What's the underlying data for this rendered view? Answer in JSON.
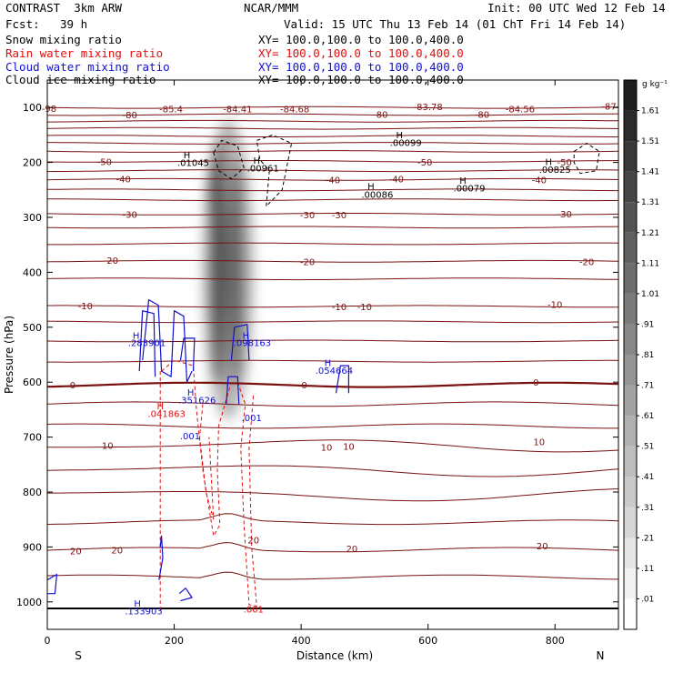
{
  "header": {
    "model": "CONTRAST  3km ARW",
    "center": "NCAR/MMM",
    "init": "Init: 00 UTC Wed 12 Feb 14",
    "fcst_label": "Fcst:",
    "fcst_value": "39 h",
    "valid": "Valid: 15 UTC Thu 13 Feb 14 (01 ChT Fri 14 Feb 14)"
  },
  "legend": [
    {
      "label": "Snow mixing ratio",
      "xy": "XY= 100.0,100.0 to 100.0,400.0",
      "color": "#000000"
    },
    {
      "label": "Rain water mixing ratio",
      "xy": "XY= 100.0,100.0 to 100.0,400.0",
      "color": "#e01010"
    },
    {
      "label": "Cloud water mixing ratio",
      "xy": "XY= 100.0,100.0 to 100.0,400.0",
      "color": "#1010d0"
    },
    {
      "label": "Cloud ice mixing ratio",
      "xy": "XY= 100.0,100.0 to 100.0,400.0",
      "color": "#000000"
    }
  ],
  "chart_data": {
    "type": "contour cross-section",
    "xlabel": "Distance (km)",
    "ylabel": "Pressure (hPa)",
    "xlim": [
      0,
      900
    ],
    "ylim": [
      1050,
      50
    ],
    "xticks": [
      0,
      200,
      400,
      600,
      800
    ],
    "yticks": [
      100,
      200,
      300,
      400,
      500,
      600,
      700,
      800,
      900,
      1000
    ],
    "x_end_labels": {
      "left": "S",
      "right": "N"
    },
    "colors": {
      "temperature": "#7a1010",
      "rain": "#e01010",
      "cloud_water": "#1010d0",
      "ice": "#000000"
    },
    "colorbar": {
      "unit": "g kg⁻¹",
      "levels": [
        ".01",
        ".11",
        ".21",
        ".31",
        ".41",
        ".51",
        ".61",
        ".71",
        ".81",
        ".91",
        "1.01",
        "1.11",
        "1.21",
        "1.31",
        "1.41",
        "1.51",
        "1.61"
      ]
    },
    "temperature_labels": [
      {
        "text": "-98",
        "x": -15,
        "p": 101
      },
      {
        "text": "-85.4",
        "x": 195,
        "p": 102
      },
      {
        "text": "-84.41",
        "x": 300,
        "p": 102
      },
      {
        "text": "-84.68",
        "x": 390,
        "p": 102
      },
      {
        "text": "-83.78",
        "x": 600,
        "p": 98
      },
      {
        "text": "-84.56",
        "x": 745,
        "p": 102
      },
      {
        "text": "-87",
        "x": 885,
        "p": 97
      },
      {
        "text": "-80",
        "x": 130,
        "p": 113
      },
      {
        "text": "-80",
        "x": 525,
        "p": 112
      },
      {
        "text": "-80",
        "x": 685,
        "p": 112
      },
      {
        "text": "-50",
        "x": 90,
        "p": 198
      },
      {
        "text": "-50",
        "x": 595,
        "p": 199
      },
      {
        "text": "-50",
        "x": 815,
        "p": 199
      },
      {
        "text": "-40",
        "x": 120,
        "p": 230
      },
      {
        "text": "-40",
        "x": 450,
        "p": 231
      },
      {
        "text": "-40",
        "x": 775,
        "p": 231
      },
      {
        "text": "-40",
        "x": 550,
        "p": 230
      },
      {
        "text": "-30",
        "x": 130,
        "p": 294
      },
      {
        "text": "-30",
        "x": 410,
        "p": 295
      },
      {
        "text": "-30",
        "x": 460,
        "p": 295
      },
      {
        "text": "-30",
        "x": 815,
        "p": 293
      },
      {
        "text": "-20",
        "x": 100,
        "p": 378
      },
      {
        "text": "-20",
        "x": 410,
        "p": 380
      },
      {
        "text": "-20",
        "x": 850,
        "p": 380
      },
      {
        "text": "-10",
        "x": 60,
        "p": 461
      },
      {
        "text": "-10",
        "x": 460,
        "p": 462
      },
      {
        "text": "-10",
        "x": 500,
        "p": 462
      },
      {
        "text": "-10",
        "x": 800,
        "p": 458
      },
      {
        "text": "0",
        "x": 40,
        "p": 605
      },
      {
        "text": "0",
        "x": 405,
        "p": 605
      },
      {
        "text": "0",
        "x": 770,
        "p": 600
      },
      {
        "text": "10",
        "x": 95,
        "p": 715
      },
      {
        "text": "10",
        "x": 440,
        "p": 718
      },
      {
        "text": "10",
        "x": 475,
        "p": 716
      },
      {
        "text": "10",
        "x": 775,
        "p": 708
      },
      {
        "text": "20",
        "x": 45,
        "p": 907
      },
      {
        "text": "20",
        "x": 110,
        "p": 905
      },
      {
        "text": "20",
        "x": 325,
        "p": 887
      },
      {
        "text": "20",
        "x": 480,
        "p": 903
      },
      {
        "text": "20",
        "x": 780,
        "p": 898
      }
    ],
    "ice_labels": [
      {
        "text": "H",
        "x": 220,
        "p": 186
      },
      {
        "text": ".01045",
        "x": 230,
        "p": 200
      },
      {
        "text": "H",
        "x": 330,
        "p": 196
      },
      {
        "text": ".00961",
        "x": 340,
        "p": 210
      },
      {
        "text": "H",
        "x": 555,
        "p": 149
      },
      {
        "text": ".00099",
        "x": 565,
        "p": 163
      },
      {
        "text": "H",
        "x": 510,
        "p": 243
      },
      {
        "text": ".00086",
        "x": 520,
        "p": 258
      },
      {
        "text": "H",
        "x": 655,
        "p": 232
      },
      {
        "text": ".00079",
        "x": 665,
        "p": 246
      },
      {
        "text": "H",
        "x": 790,
        "p": 198
      },
      {
        "text": ".00825",
        "x": 800,
        "p": 212
      }
    ],
    "cloud_water_labels": [
      {
        "text": "H",
        "x": 140,
        "p": 514
      },
      {
        "text": ".283901",
        "x": 157,
        "p": 528
      },
      {
        "text": "H",
        "x": 313,
        "p": 514
      },
      {
        "text": ".098163",
        "x": 323,
        "p": 528
      },
      {
        "text": "H",
        "x": 442,
        "p": 564
      },
      {
        "text": ".054664",
        "x": 452,
        "p": 578
      },
      {
        "text": "H",
        "x": 226,
        "p": 618
      },
      {
        "text": ".351626",
        "x": 236,
        "p": 632
      },
      {
        "text": ".001",
        "x": 225,
        "p": 697
      },
      {
        "text": ".001",
        "x": 322,
        "p": 664
      },
      {
        "text": "H",
        "x": 142,
        "p": 1002
      },
      {
        "text": ".133903",
        "x": 152,
        "p": 1016
      }
    ],
    "rain_labels": [
      {
        "text": "H",
        "x": 178,
        "p": 643
      },
      {
        "text": ".041863",
        "x": 188,
        "p": 657
      },
      {
        "text": ".001",
        "x": 325,
        "p": 1013
      }
    ],
    "snow_field": {
      "peak": 1.61,
      "x_range": [
        240,
        330
      ],
      "p_range": [
        200,
        600
      ]
    },
    "surface_p": 1012
  }
}
